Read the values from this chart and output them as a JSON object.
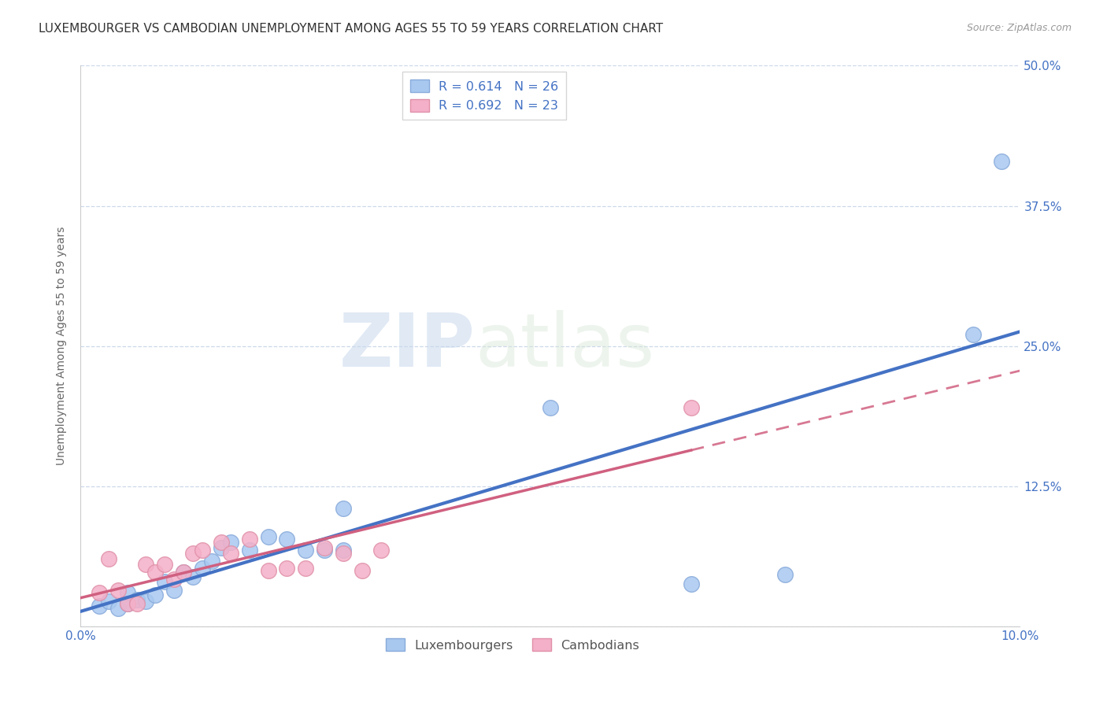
{
  "title": "LUXEMBOURGER VS CAMBODIAN UNEMPLOYMENT AMONG AGES 55 TO 59 YEARS CORRELATION CHART",
  "source": "Source: ZipAtlas.com",
  "ylabel": "Unemployment Among Ages 55 to 59 years",
  "xlim": [
    0.0,
    0.1
  ],
  "ylim": [
    0.0,
    0.5
  ],
  "xticks": [
    0.0,
    0.02,
    0.04,
    0.06,
    0.08,
    0.1
  ],
  "yticks": [
    0.0,
    0.125,
    0.25,
    0.375,
    0.5
  ],
  "xtick_labels": [
    "0.0%",
    "",
    "",
    "",
    "",
    "10.0%"
  ],
  "ytick_labels": [
    "",
    "12.5%",
    "25.0%",
    "37.5%",
    "50.0%"
  ],
  "lux_color": "#a8c8f0",
  "cam_color": "#f4b0c8",
  "lux_edge_color": "#88aada",
  "cam_edge_color": "#e090a8",
  "lux_line_color": "#4472c4",
  "cam_line_color": "#d06080",
  "lux_scatter": [
    [
      0.002,
      0.018
    ],
    [
      0.003,
      0.022
    ],
    [
      0.004,
      0.016
    ],
    [
      0.005,
      0.02
    ],
    [
      0.005,
      0.03
    ],
    [
      0.006,
      0.024
    ],
    [
      0.007,
      0.022
    ],
    [
      0.008,
      0.028
    ],
    [
      0.009,
      0.04
    ],
    [
      0.01,
      0.032
    ],
    [
      0.011,
      0.048
    ],
    [
      0.012,
      0.044
    ],
    [
      0.013,
      0.052
    ],
    [
      0.014,
      0.058
    ],
    [
      0.015,
      0.07
    ],
    [
      0.016,
      0.075
    ],
    [
      0.018,
      0.068
    ],
    [
      0.02,
      0.08
    ],
    [
      0.022,
      0.078
    ],
    [
      0.024,
      0.068
    ],
    [
      0.026,
      0.068
    ],
    [
      0.028,
      0.105
    ],
    [
      0.028,
      0.068
    ],
    [
      0.05,
      0.195
    ],
    [
      0.065,
      0.038
    ],
    [
      0.075,
      0.046
    ],
    [
      0.095,
      0.26
    ],
    [
      0.098,
      0.415
    ]
  ],
  "cam_scatter": [
    [
      0.002,
      0.03
    ],
    [
      0.003,
      0.06
    ],
    [
      0.004,
      0.032
    ],
    [
      0.005,
      0.02
    ],
    [
      0.006,
      0.02
    ],
    [
      0.007,
      0.055
    ],
    [
      0.008,
      0.048
    ],
    [
      0.009,
      0.055
    ],
    [
      0.01,
      0.042
    ],
    [
      0.011,
      0.048
    ],
    [
      0.012,
      0.065
    ],
    [
      0.013,
      0.068
    ],
    [
      0.015,
      0.075
    ],
    [
      0.016,
      0.065
    ],
    [
      0.018,
      0.078
    ],
    [
      0.02,
      0.05
    ],
    [
      0.022,
      0.052
    ],
    [
      0.024,
      0.052
    ],
    [
      0.026,
      0.07
    ],
    [
      0.028,
      0.065
    ],
    [
      0.03,
      0.05
    ],
    [
      0.032,
      0.068
    ],
    [
      0.065,
      0.195
    ]
  ],
  "watermark_zip": "ZIP",
  "watermark_atlas": "atlas",
  "title_fontsize": 11,
  "axis_label_fontsize": 10,
  "tick_fontsize": 11
}
